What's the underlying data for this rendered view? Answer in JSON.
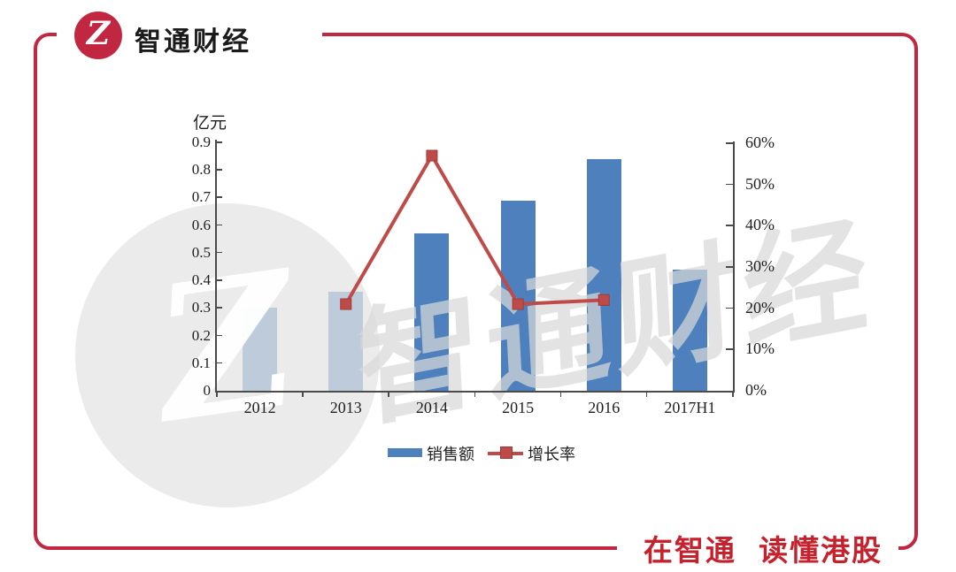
{
  "header": {
    "brand": "智通财经"
  },
  "footer": {
    "slogan": "在智通 读懂港股"
  },
  "watermark": {
    "text": "智通财经",
    "logo_letter": "Z"
  },
  "colors": {
    "brand_red": "#C22742",
    "slogan_red": "#C4232E",
    "bar_blue": "#4D80BC",
    "line_red": "#BE4B48",
    "marker_border": "#9E3B38",
    "axis_gray": "#4A4A4A"
  },
  "chart_data": {
    "type": "bar",
    "subtype": "bar+line combo",
    "categories": [
      "2012",
      "2013",
      "2014",
      "2015",
      "2016",
      "2017H1"
    ],
    "series": [
      {
        "name": "销售额",
        "type": "bar",
        "axis": "left",
        "unit": "亿元",
        "values": [
          0.3,
          0.36,
          0.57,
          0.69,
          0.84,
          0.44
        ]
      },
      {
        "name": "增长率",
        "type": "line",
        "axis": "right",
        "unit": "%",
        "values": [
          null,
          21,
          57,
          21,
          22,
          null
        ]
      }
    ],
    "title": "",
    "xlabel": "",
    "left_axis": {
      "title": "亿元",
      "min": 0,
      "max": 0.9,
      "ticks": [
        "0",
        "0.1",
        "0.2",
        "0.3",
        "0.4",
        "0.5",
        "0.6",
        "0.7",
        "0.8",
        "0.9"
      ]
    },
    "right_axis": {
      "min": 0,
      "max": 60,
      "ticks": [
        "0%",
        "10%",
        "20%",
        "30%",
        "40%",
        "50%",
        "60%"
      ]
    },
    "grid": false,
    "legend_position": "bottom",
    "legend": [
      {
        "label": "销售额"
      },
      {
        "label": "增长率"
      }
    ]
  }
}
